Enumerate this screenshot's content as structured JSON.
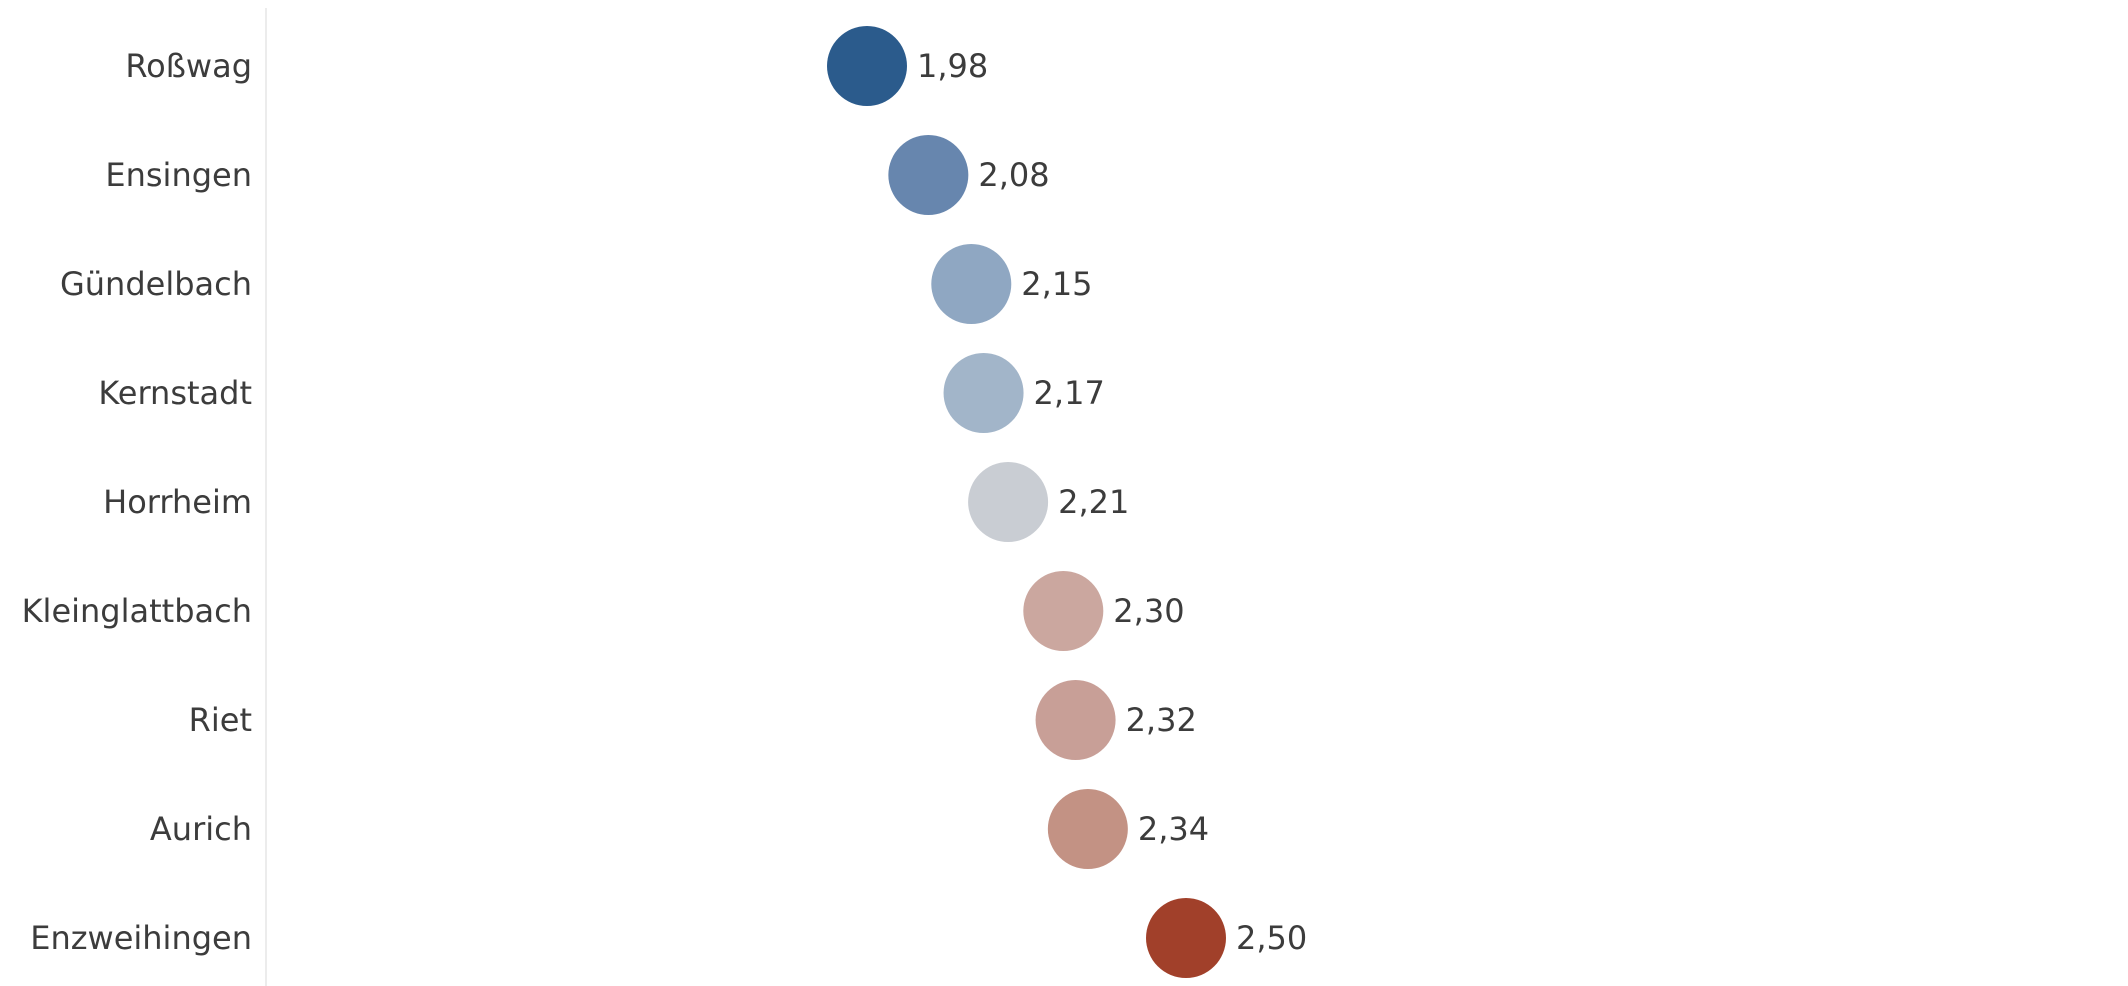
{
  "chart_data": {
    "type": "scatter",
    "title": "",
    "xlabel": "",
    "ylabel": "",
    "grid": false,
    "legend": "none",
    "xlim": [
      1.4,
      3.5
    ],
    "categories": [
      "Roßwag",
      "Ensingen",
      "Gündelbach",
      "Kernstadt",
      "Horrheim",
      "Kleinglattbach",
      "Riet",
      "Aurich",
      "Enzweihingen"
    ],
    "values": [
      1.98,
      2.08,
      2.15,
      2.17,
      2.21,
      2.3,
      2.32,
      2.34,
      2.5
    ],
    "value_labels": [
      "1,98",
      "2,08",
      "2,15",
      "2,17",
      "2,21",
      "2,30",
      "2,32",
      "2,34",
      "2,50"
    ],
    "colors": [
      "#2b5b8c",
      "#6786ae",
      "#8fa7c2",
      "#a2b5c9",
      "#c9cdd3",
      "#cba79f",
      "#c89f97",
      "#c39284",
      "#a1402a"
    ]
  }
}
